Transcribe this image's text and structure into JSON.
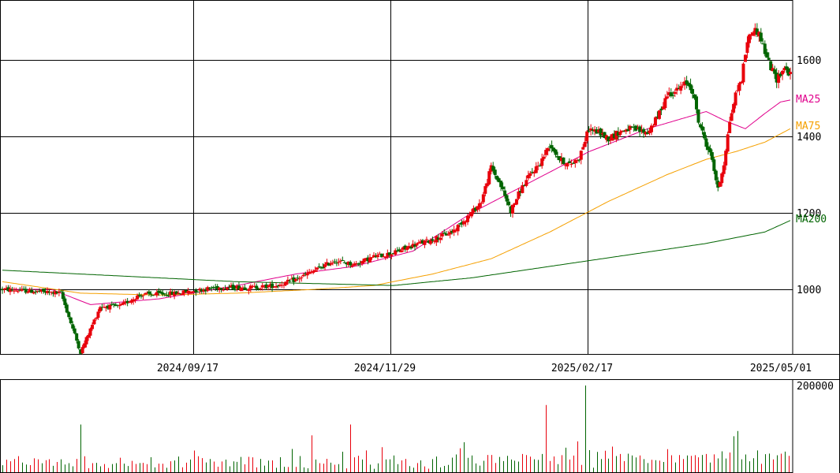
{
  "chart_data": [
    {
      "type": "candlestick",
      "title": "",
      "x_ticks": [
        "2024/09/17",
        "2024/11/29",
        "2025/02/17",
        "2025/05/01"
      ],
      "y_ticks": [
        1000,
        1200,
        1400,
        1600
      ],
      "ylim": [
        830,
        1750
      ],
      "grid": true,
      "colors": {
        "up": "#e8000b",
        "down": "#006400",
        "frame": "#000000"
      },
      "moving_averages": [
        {
          "name": "MA25",
          "color": "#e0008c"
        },
        {
          "name": "MA75",
          "color": "#f5a000"
        },
        {
          "name": "MA200",
          "color": "#006400"
        }
      ],
      "ma_anchor_values": {
        "MA25": [
          [
            0,
            1000
          ],
          [
            25,
            1000
          ],
          [
            45,
            960
          ],
          [
            80,
            975
          ],
          [
            120,
            1010
          ],
          [
            150,
            1040
          ],
          [
            180,
            1060
          ],
          [
            210,
            1100
          ],
          [
            240,
            1200
          ],
          [
            270,
            1280
          ],
          [
            300,
            1360
          ],
          [
            330,
            1420
          ],
          [
            350,
            1450
          ],
          [
            360,
            1465
          ],
          [
            370,
            1440
          ],
          [
            380,
            1420
          ],
          [
            390,
            1460
          ],
          [
            398,
            1490
          ],
          [
            403,
            1495
          ]
        ],
        "MA75": [
          [
            0,
            1020
          ],
          [
            40,
            990
          ],
          [
            80,
            985
          ],
          [
            120,
            990
          ],
          [
            160,
            1000
          ],
          [
            190,
            1010
          ],
          [
            220,
            1040
          ],
          [
            250,
            1080
          ],
          [
            280,
            1150
          ],
          [
            310,
            1230
          ],
          [
            340,
            1300
          ],
          [
            360,
            1340
          ],
          [
            375,
            1360
          ],
          [
            390,
            1385
          ],
          [
            403,
            1420
          ]
        ],
        "MA200": [
          [
            0,
            1050
          ],
          [
            40,
            1040
          ],
          [
            80,
            1030
          ],
          [
            120,
            1020
          ],
          [
            160,
            1015
          ],
          [
            200,
            1010
          ],
          [
            240,
            1030
          ],
          [
            280,
            1060
          ],
          [
            320,
            1090
          ],
          [
            360,
            1120
          ],
          [
            390,
            1150
          ],
          [
            403,
            1180
          ]
        ]
      },
      "price_anchor_values": [
        [
          0,
          1000
        ],
        [
          15,
          995
        ],
        [
          30,
          990
        ],
        [
          40,
          835
        ],
        [
          50,
          955
        ],
        [
          60,
          955
        ],
        [
          70,
          985
        ],
        [
          90,
          990
        ],
        [
          110,
          1005
        ],
        [
          130,
          1005
        ],
        [
          140,
          1010
        ],
        [
          150,
          1025
        ],
        [
          160,
          1050
        ],
        [
          170,
          1075
        ],
        [
          180,
          1065
        ],
        [
          190,
          1085
        ],
        [
          200,
          1095
        ],
        [
          210,
          1115
        ],
        [
          220,
          1130
        ],
        [
          230,
          1150
        ],
        [
          240,
          1200
        ],
        [
          245,
          1230
        ],
        [
          250,
          1320
        ],
        [
          255,
          1270
        ],
        [
          260,
          1205
        ],
        [
          265,
          1260
        ],
        [
          270,
          1300
        ],
        [
          275,
          1330
        ],
        [
          280,
          1380
        ],
        [
          285,
          1340
        ],
        [
          290,
          1325
        ],
        [
          295,
          1345
        ],
        [
          300,
          1420
        ],
        [
          305,
          1410
        ],
        [
          310,
          1395
        ],
        [
          315,
          1410
        ],
        [
          320,
          1420
        ],
        [
          330,
          1410
        ],
        [
          335,
          1450
        ],
        [
          340,
          1510
        ],
        [
          345,
          1520
        ],
        [
          350,
          1540
        ],
        [
          353,
          1520
        ],
        [
          356,
          1440
        ],
        [
          360,
          1380
        ],
        [
          363,
          1340
        ],
        [
          366,
          1260
        ],
        [
          369,
          1330
        ],
        [
          372,
          1440
        ],
        [
          375,
          1510
        ],
        [
          378,
          1550
        ],
        [
          381,
          1650
        ],
        [
          384,
          1680
        ],
        [
          387,
          1670
        ],
        [
          390,
          1620
        ],
        [
          393,
          1580
        ],
        [
          396,
          1550
        ],
        [
          400,
          1580
        ],
        [
          403,
          1560
        ]
      ],
      "volume": {
        "y_ticks": [
          200000
        ],
        "ylim": [
          0,
          200000
        ],
        "spikes": [
          [
            298,
            200000
          ],
          [
            278,
            155000
          ],
          [
            376,
            95000
          ],
          [
            40,
            110000
          ],
          [
            178,
            110000
          ],
          [
            158,
            85000
          ]
        ]
      }
    }
  ]
}
